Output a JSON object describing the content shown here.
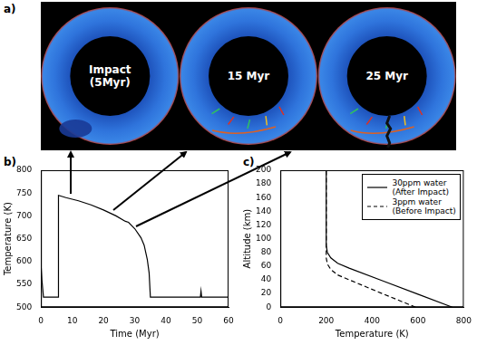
{
  "panel_a": {
    "panel_label": "a)",
    "snapshots": [
      {
        "label": "Impact (5Myr)"
      },
      {
        "label": "15 Myr"
      },
      {
        "label": "25 Myr"
      }
    ]
  },
  "chart_data": [
    {
      "panel_label": "b)",
      "type": "line",
      "x_label": "Time (Myr)",
      "y_label": "Temperature (K)",
      "x": [
        0,
        0.3,
        0.8,
        5.5,
        5.6,
        8,
        12,
        16,
        20,
        24,
        27,
        28,
        30,
        32,
        33,
        34,
        34.6,
        35,
        51,
        51.2,
        51.4,
        60
      ],
      "values": [
        595,
        560,
        522,
        522,
        745,
        740,
        733,
        724,
        713,
        700,
        688,
        686,
        672,
        652,
        636,
        605,
        575,
        522,
        522,
        535,
        522,
        522
      ],
      "color": "#000000",
      "line_style": "solid",
      "xlim": [
        0,
        60
      ],
      "xticks": [
        0,
        10,
        20,
        30,
        40,
        50,
        60
      ],
      "ylim": [
        500,
        800
      ],
      "yticks": [
        500,
        550,
        600,
        650,
        700,
        750,
        800
      ],
      "grid": false
    },
    {
      "panel_label": "c)",
      "type": "line",
      "x_label": "Temperature (K)",
      "y_label": "Altitude (km)",
      "series": [
        {
          "name": "30ppm water (After Impact)",
          "color": "#000000",
          "line_style": "solid",
          "x": [
            750,
            600,
            450,
            300,
            250,
            220,
            205,
            200,
            200
          ],
          "values": [
            0,
            19,
            38,
            57,
            64,
            72,
            80,
            90,
            200
          ]
        },
        {
          "name": "3ppm water (Before Impact)",
          "color": "#000000",
          "line_style": "dashed",
          "x": [
            590,
            450,
            300,
            250,
            220,
            205,
            200,
            200
          ],
          "values": [
            0,
            19,
            40,
            47,
            55,
            63,
            72,
            200
          ]
        }
      ],
      "xlim": [
        0,
        800
      ],
      "xticks": [
        0,
        200,
        400,
        600,
        800
      ],
      "ylim": [
        0,
        200
      ],
      "yticks": [
        0,
        20,
        40,
        60,
        80,
        100,
        120,
        140,
        160,
        180,
        200
      ],
      "grid": false,
      "legend": "upper right"
    }
  ]
}
